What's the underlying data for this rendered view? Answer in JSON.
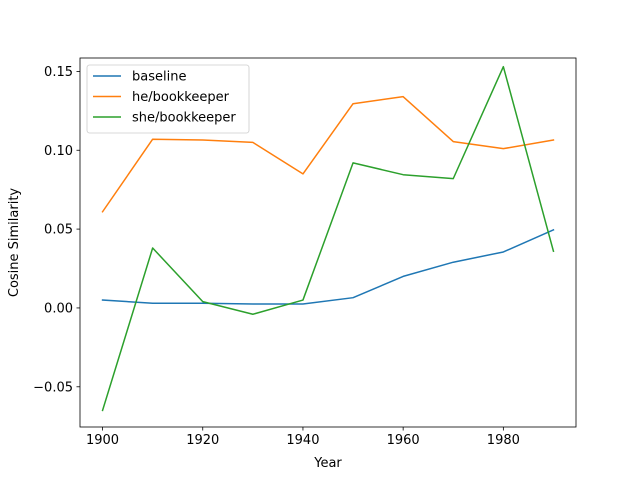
{
  "chart_data": {
    "type": "line",
    "xlabel": "Year",
    "ylabel": "Cosine Similarity",
    "xlim": [
      1895.5,
      1994.5
    ],
    "ylim": [
      -0.0755,
      0.1585
    ],
    "x_ticks": [
      1900,
      1920,
      1940,
      1960,
      1980
    ],
    "x_tick_labels": [
      "1900",
      "1920",
      "1940",
      "1960",
      "1980"
    ],
    "y_ticks": [
      -0.05,
      0.0,
      0.05,
      0.1,
      0.15
    ],
    "y_tick_labels": [
      "−0.05",
      "0.00",
      "0.05",
      "0.10",
      "0.15"
    ],
    "grid": false,
    "legend_position": "top-left",
    "x": [
      1900,
      1910,
      1920,
      1930,
      1940,
      1950,
      1960,
      1970,
      1980,
      1990
    ],
    "series": [
      {
        "name": "baseline",
        "color": "#1f77b4",
        "values": [
          0.005,
          0.003,
          0.003,
          0.0025,
          0.0025,
          0.0065,
          0.02,
          0.029,
          0.0355,
          0.0495
        ]
      },
      {
        "name": "he/bookkeeper",
        "color": "#ff7f0e",
        "values": [
          0.061,
          0.107,
          0.1065,
          0.105,
          0.085,
          0.1295,
          0.134,
          0.1055,
          0.101,
          0.1065
        ]
      },
      {
        "name": "she/bookkeeper",
        "color": "#2ca02c",
        "values": [
          -0.065,
          0.038,
          0.004,
          -0.004,
          0.005,
          0.092,
          0.0845,
          0.082,
          0.153,
          0.036
        ]
      }
    ]
  }
}
